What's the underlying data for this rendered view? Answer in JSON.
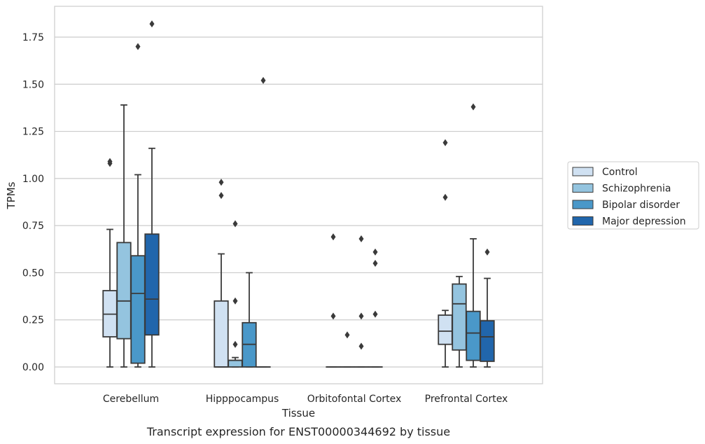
{
  "caption": "Transcript expression for ENST00000344692 by tissue",
  "chart_data": {
    "type": "boxplot",
    "xlabel": "Tissue",
    "ylabel": "TPMs",
    "ylim": [
      -0.09,
      1.92
    ],
    "yticks": [
      "0.00",
      "0.25",
      "0.50",
      "0.75",
      "1.00",
      "1.25",
      "1.50",
      "1.75"
    ],
    "grid": "horizontal",
    "legend_position": "right",
    "categories": [
      "Cerebellum",
      "Hipppocampus",
      "Orbitofontal Cortex",
      "Prefrontal Cortex"
    ],
    "series": [
      {
        "name": "Control",
        "color": "#d0e1f2",
        "boxes": [
          {
            "whislo": 0.0,
            "q1": 0.16,
            "med": 0.28,
            "q3": 0.405,
            "whishi": 0.73,
            "fliers": [
              1.08,
              1.09
            ]
          },
          {
            "whislo": 0.0,
            "q1": 0.0,
            "med": 0.0,
            "q3": 0.35,
            "whishi": 0.6,
            "fliers": [
              0.98,
              0.91
            ]
          },
          {
            "whislo": 0.0,
            "q1": 0.0,
            "med": 0.0,
            "q3": 0.0,
            "whishi": 0.0,
            "fliers": [
              0.69,
              0.27
            ]
          },
          {
            "whislo": 0.0,
            "q1": 0.12,
            "med": 0.19,
            "q3": 0.275,
            "whishi": 0.3,
            "fliers": [
              1.19,
              0.9
            ]
          }
        ]
      },
      {
        "name": "Schizophrenia",
        "color": "#94c4df",
        "boxes": [
          {
            "whislo": 0.0,
            "q1": 0.15,
            "med": 0.35,
            "q3": 0.66,
            "whishi": 1.39,
            "fliers": []
          },
          {
            "whislo": 0.0,
            "q1": 0.0,
            "med": 0.035,
            "q3": 0.035,
            "whishi": 0.05,
            "fliers": [
              0.76,
              0.35,
              0.12
            ]
          },
          {
            "whislo": 0.0,
            "q1": 0.0,
            "med": 0.0,
            "q3": 0.0,
            "whishi": 0.0,
            "fliers": [
              0.17
            ]
          },
          {
            "whislo": 0.0,
            "q1": 0.09,
            "med": 0.335,
            "q3": 0.44,
            "whishi": 0.48,
            "fliers": []
          }
        ]
      },
      {
        "name": "Bipolar disorder",
        "color": "#4a98c9",
        "boxes": [
          {
            "whislo": 0.0,
            "q1": 0.02,
            "med": 0.39,
            "q3": 0.59,
            "whishi": 1.02,
            "fliers": [
              1.7
            ]
          },
          {
            "whislo": 0.0,
            "q1": 0.0,
            "med": 0.12,
            "q3": 0.235,
            "whishi": 0.5,
            "fliers": []
          },
          {
            "whislo": 0.0,
            "q1": 0.0,
            "med": 0.0,
            "q3": 0.0,
            "whishi": 0.0,
            "fliers": [
              0.68,
              0.27,
              0.11
            ]
          },
          {
            "whislo": 0.0,
            "q1": 0.035,
            "med": 0.18,
            "q3": 0.295,
            "whishi": 0.68,
            "fliers": [
              1.38
            ]
          }
        ]
      },
      {
        "name": "Major depression",
        "color": "#2166ac",
        "boxes": [
          {
            "whislo": 0.0,
            "q1": 0.17,
            "med": 0.36,
            "q3": 0.705,
            "whishi": 1.16,
            "fliers": [
              1.82
            ]
          },
          {
            "whislo": 0.0,
            "q1": 0.0,
            "med": 0.0,
            "q3": 0.0,
            "whishi": 0.0,
            "fliers": [
              1.52
            ]
          },
          {
            "whislo": 0.0,
            "q1": 0.0,
            "med": 0.0,
            "q3": 0.0,
            "whishi": 0.0,
            "fliers": [
              0.61,
              0.55,
              0.28
            ]
          },
          {
            "whislo": 0.0,
            "q1": 0.03,
            "med": 0.16,
            "q3": 0.245,
            "whishi": 0.47,
            "fliers": [
              0.61
            ]
          }
        ]
      }
    ]
  }
}
